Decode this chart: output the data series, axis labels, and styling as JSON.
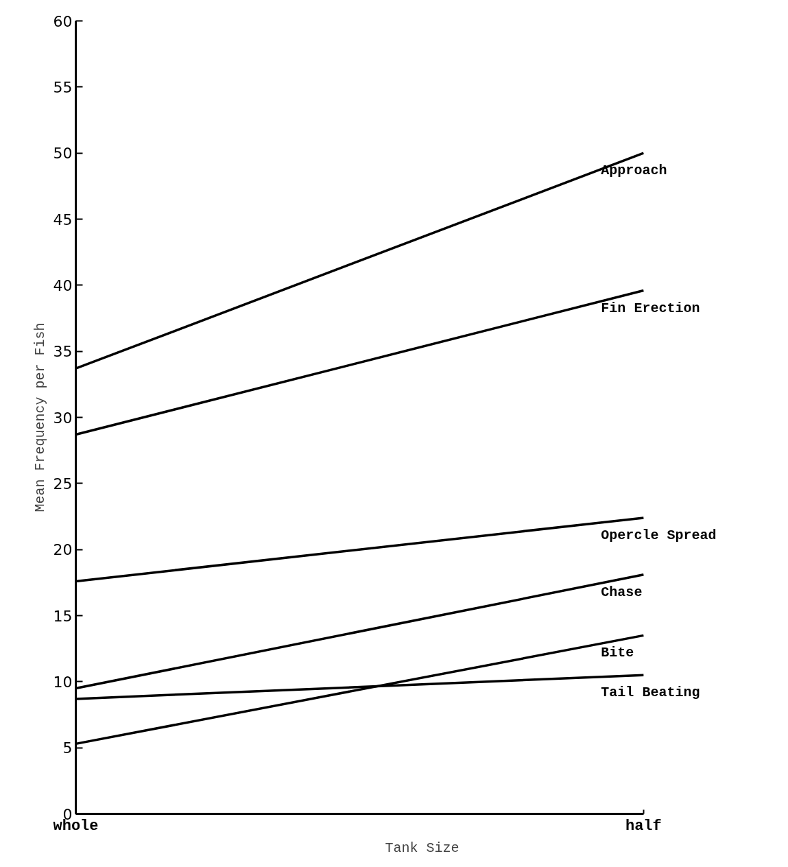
{
  "chart_data": {
    "type": "line",
    "xlabel": "Tank Size",
    "ylabel": "Mean Frequency per Fish",
    "categories": [
      "whole",
      "half"
    ],
    "series": [
      {
        "name": "Approach",
        "color": "#000000",
        "values": [
          33.7,
          50.0
        ]
      },
      {
        "name": "Fin Erection",
        "color": "#000000",
        "values": [
          28.7,
          39.6
        ]
      },
      {
        "name": "Opercle Spread",
        "color": "#000000",
        "values": [
          17.6,
          22.4
        ]
      },
      {
        "name": "Chase",
        "color": "#000000",
        "values": [
          9.5,
          18.1
        ]
      },
      {
        "name": "Bite",
        "color": "#000000",
        "values": [
          5.3,
          13.5
        ]
      },
      {
        "name": "Tail Beating",
        "color": "#000000",
        "values": [
          8.7,
          10.5
        ]
      }
    ],
    "ylim": [
      0,
      60
    ],
    "yticks": [
      0,
      5,
      10,
      15,
      20,
      25,
      30,
      35,
      40,
      45,
      50,
      55,
      60
    ],
    "grid": false,
    "marker": "none",
    "line_style": "solid"
  }
}
